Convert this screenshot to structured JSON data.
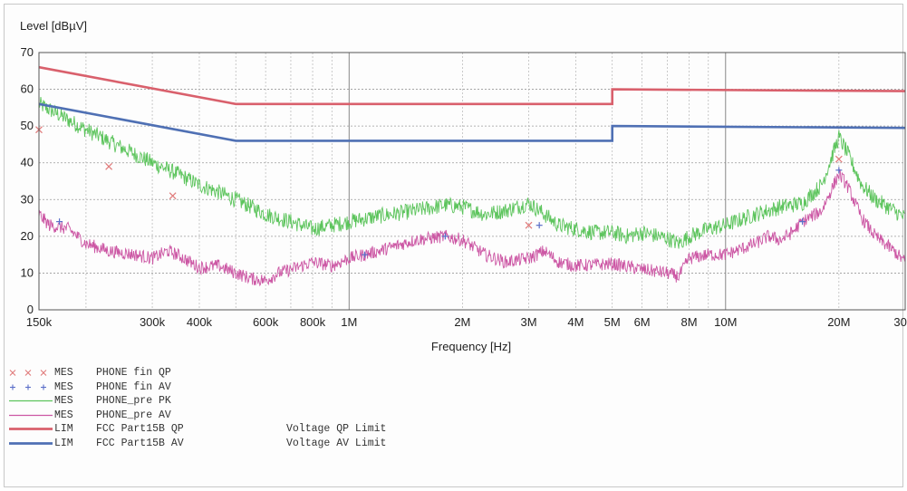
{
  "chart_data": {
    "type": "line",
    "ylabel": "Level [dBµV]",
    "xlabel": "Frequency [Hz]",
    "x_scale": "log",
    "xlim": [
      150000,
      30000000
    ],
    "ylim": [
      0,
      70
    ],
    "grid": true,
    "y_ticks": [
      0,
      10,
      20,
      30,
      40,
      50,
      60,
      70
    ],
    "x_ticks": [
      {
        "value": 150000,
        "label": "150k"
      },
      {
        "value": 300000,
        "label": "300k"
      },
      {
        "value": 400000,
        "label": "400k"
      },
      {
        "value": 600000,
        "label": "600k"
      },
      {
        "value": 800000,
        "label": "800k"
      },
      {
        "value": 1000000,
        "label": "1M"
      },
      {
        "value": 2000000,
        "label": "2M"
      },
      {
        "value": 3000000,
        "label": "3M"
      },
      {
        "value": 4000000,
        "label": "4M"
      },
      {
        "value": 5000000,
        "label": "5M"
      },
      {
        "value": 6000000,
        "label": "6M"
      },
      {
        "value": 8000000,
        "label": "8M"
      },
      {
        "value": 10000000,
        "label": "10M"
      },
      {
        "value": 20000000,
        "label": "20M"
      },
      {
        "value": 30000000,
        "label": "30M"
      }
    ],
    "series": [
      {
        "id": "qp-limit",
        "type": "LIM",
        "name": "FCC Part15B QP",
        "description": "Voltage QP Limit",
        "color": "#d9606c",
        "style": "step",
        "points": [
          [
            150000,
            66
          ],
          [
            500000,
            56
          ],
          [
            5000000,
            56
          ],
          [
            5000000,
            60
          ],
          [
            30000000,
            59.5
          ]
        ]
      },
      {
        "id": "av-limit",
        "type": "LIM",
        "name": "FCC Part15B AV",
        "description": "Voltage AV Limit",
        "color": "#4f70b4",
        "style": "step",
        "points": [
          [
            150000,
            56
          ],
          [
            500000,
            46
          ],
          [
            5000000,
            46
          ],
          [
            5000000,
            50
          ],
          [
            30000000,
            49.5
          ]
        ]
      },
      {
        "id": "pre-pk",
        "type": "MES",
        "name": "PHONE_pre PK",
        "description": "",
        "color": "#5cc45c",
        "style": "trace",
        "points": [
          [
            150000,
            56
          ],
          [
            170000,
            53
          ],
          [
            200000,
            49
          ],
          [
            250000,
            44
          ],
          [
            300000,
            40
          ],
          [
            350000,
            37
          ],
          [
            400000,
            34
          ],
          [
            450000,
            32
          ],
          [
            500000,
            30
          ],
          [
            550000,
            28
          ],
          [
            600000,
            26
          ],
          [
            700000,
            24
          ],
          [
            800000,
            22
          ],
          [
            900000,
            23
          ],
          [
            1000000,
            24
          ],
          [
            1200000,
            25.5
          ],
          [
            1500000,
            27
          ],
          [
            1800000,
            28.5
          ],
          [
            2000000,
            28
          ],
          [
            2300000,
            26
          ],
          [
            2600000,
            27
          ],
          [
            3000000,
            29
          ],
          [
            3300000,
            26
          ],
          [
            3600000,
            23
          ],
          [
            4000000,
            22
          ],
          [
            4500000,
            21
          ],
          [
            5000000,
            21
          ],
          [
            5500000,
            20
          ],
          [
            6000000,
            21
          ],
          [
            7000000,
            19.5
          ],
          [
            7500000,
            18
          ],
          [
            8000000,
            20
          ],
          [
            9000000,
            22
          ],
          [
            10000000,
            23
          ],
          [
            12000000,
            26
          ],
          [
            14000000,
            28
          ],
          [
            16000000,
            29
          ],
          [
            18000000,
            34
          ],
          [
            20000000,
            47
          ],
          [
            21000000,
            43
          ],
          [
            23000000,
            34
          ],
          [
            25000000,
            30
          ],
          [
            28000000,
            27
          ],
          [
            30000000,
            25
          ]
        ]
      },
      {
        "id": "pre-av",
        "type": "MES",
        "name": "PHONE_pre AV",
        "description": "",
        "color": "#cc57a4",
        "style": "trace",
        "points": [
          [
            150000,
            26
          ],
          [
            160000,
            23
          ],
          [
            180000,
            22
          ],
          [
            200000,
            18
          ],
          [
            230000,
            16
          ],
          [
            270000,
            15
          ],
          [
            300000,
            14
          ],
          [
            330000,
            16
          ],
          [
            350000,
            15
          ],
          [
            400000,
            11.5
          ],
          [
            450000,
            12
          ],
          [
            500000,
            10
          ],
          [
            550000,
            8.5
          ],
          [
            600000,
            8
          ],
          [
            650000,
            10
          ],
          [
            700000,
            11
          ],
          [
            800000,
            13
          ],
          [
            900000,
            12
          ],
          [
            1000000,
            14
          ],
          [
            1200000,
            16
          ],
          [
            1500000,
            19
          ],
          [
            1800000,
            20
          ],
          [
            2000000,
            19
          ],
          [
            2300000,
            15
          ],
          [
            2600000,
            13
          ],
          [
            3000000,
            14
          ],
          [
            3300000,
            16
          ],
          [
            3600000,
            13
          ],
          [
            4000000,
            12
          ],
          [
            5000000,
            12.5
          ],
          [
            6000000,
            11
          ],
          [
            7000000,
            10
          ],
          [
            7500000,
            9
          ],
          [
            8000000,
            14
          ],
          [
            9000000,
            15
          ],
          [
            10000000,
            15
          ],
          [
            12000000,
            18
          ],
          [
            13000000,
            20
          ],
          [
            14000000,
            19
          ],
          [
            15000000,
            21
          ],
          [
            16000000,
            24
          ],
          [
            18000000,
            27
          ],
          [
            20000000,
            37
          ],
          [
            21000000,
            34
          ],
          [
            23000000,
            25
          ],
          [
            25000000,
            20
          ],
          [
            28000000,
            16
          ],
          [
            30000000,
            13
          ]
        ]
      },
      {
        "id": "fin-qp",
        "type": "MES",
        "name": "PHONE fin QP",
        "description": "",
        "color": "#e07a7a",
        "style": "marker-x",
        "points": [
          [
            150000,
            49
          ],
          [
            230000,
            39
          ],
          [
            340000,
            31
          ],
          [
            3000000,
            23
          ],
          [
            20000000,
            41
          ]
        ]
      },
      {
        "id": "fin-av",
        "type": "MES",
        "name": "PHONE fin AV",
        "description": "",
        "color": "#5a6ec8",
        "style": "marker-plus",
        "points": [
          [
            170000,
            24
          ],
          [
            1100000,
            15
          ],
          [
            1800000,
            20
          ],
          [
            3200000,
            23
          ],
          [
            16000000,
            24
          ],
          [
            20000000,
            38
          ]
        ]
      }
    ],
    "legend_order": [
      "fin-qp",
      "fin-av",
      "pre-pk",
      "pre-av",
      "qp-limit",
      "av-limit"
    ]
  }
}
